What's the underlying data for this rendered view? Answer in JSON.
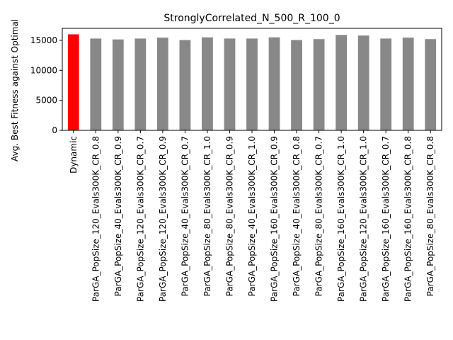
{
  "chart_data": {
    "type": "bar",
    "title": "StronglyCorrelated_N_500_R_100_0",
    "xlabel": "",
    "ylabel": "Avg. Best Fitness against Optimal",
    "ylim": [
      0,
      17000
    ],
    "yticks": [
      0,
      5000,
      10000,
      15000
    ],
    "grid": false,
    "legend": "none",
    "categories": [
      "Dynamic",
      "ParGA_PopSize_120_Evals300K_CR_0.8",
      "ParGA_PopSize_40_Evals300K_CR_0.9",
      "ParGA_PopSize_120_Evals300K_CR_0.7",
      "ParGA_PopSize_120_Evals300K_CR_0.9",
      "ParGA_PopSize_40_Evals300K_CR_0.7",
      "ParGA_PopSize_80_Evals300K_CR_1.0",
      "ParGA_PopSize_80_Evals300K_CR_0.9",
      "ParGA_PopSize_40_Evals300K_CR_1.0",
      "ParGA_PopSize_160_Evals300K_CR_0.9",
      "ParGA_PopSize_40_Evals300K_CR_0.8",
      "ParGA_PopSize_80_Evals300K_CR_0.7",
      "ParGA_PopSize_160_Evals300K_CR_1.0",
      "ParGA_PopSize_120_Evals300K_CR_1.0",
      "ParGA_PopSize_160_Evals300K_CR_0.7",
      "ParGA_PopSize_160_Evals300K_CR_0.8",
      "ParGA_PopSize_80_Evals300K_CR_0.8"
    ],
    "values": [
      16000,
      15300,
      15150,
      15300,
      15450,
      15050,
      15500,
      15300,
      15300,
      15500,
      15050,
      15200,
      15900,
      15800,
      15300,
      15450,
      15200
    ],
    "colors": [
      "#ff0000",
      "#888888",
      "#888888",
      "#888888",
      "#888888",
      "#888888",
      "#888888",
      "#888888",
      "#888888",
      "#888888",
      "#888888",
      "#888888",
      "#888888",
      "#888888",
      "#888888",
      "#888888",
      "#888888"
    ]
  }
}
